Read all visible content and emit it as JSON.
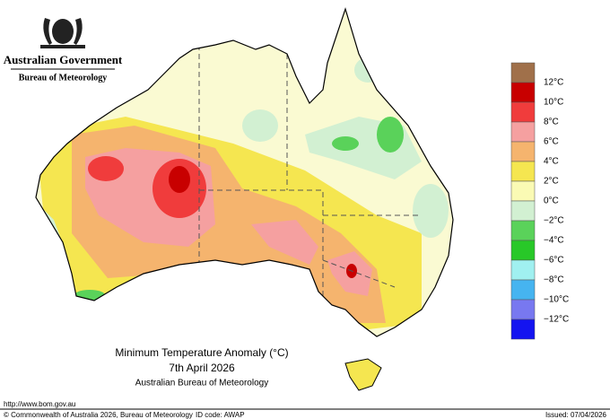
{
  "header": {
    "government": "Australian Government",
    "bureau": "Bureau of Meteorology"
  },
  "map": {
    "title": "Minimum Temperature Anomaly (°C)",
    "date": "7th April 2026",
    "source": "Australian Bureau of Meteorology"
  },
  "legend": {
    "colors": [
      "#a0704a",
      "#c80000",
      "#f03c3c",
      "#f5a0a0",
      "#f5b46e",
      "#f5e650",
      "#fafab4",
      "#d2f0d2",
      "#5ad25a",
      "#28c828",
      "#a0f0f0",
      "#46b4f0",
      "#7878f0",
      "#1414f0"
    ],
    "labels": [
      "12°C",
      "10°C",
      "8°C",
      "6°C",
      "4°C",
      "2°C",
      "0°C",
      "−2°C",
      "−4°C",
      "−6°C",
      "−8°C",
      "−10°C",
      "−12°C"
    ]
  },
  "footer": {
    "url": "http://www.bom.gov.au",
    "copyright": "© Commonwealth of Australia 2026, Bureau of Meteorology",
    "id_code": "ID code: AWAP",
    "issued": "Issued: 07/04/2026"
  }
}
